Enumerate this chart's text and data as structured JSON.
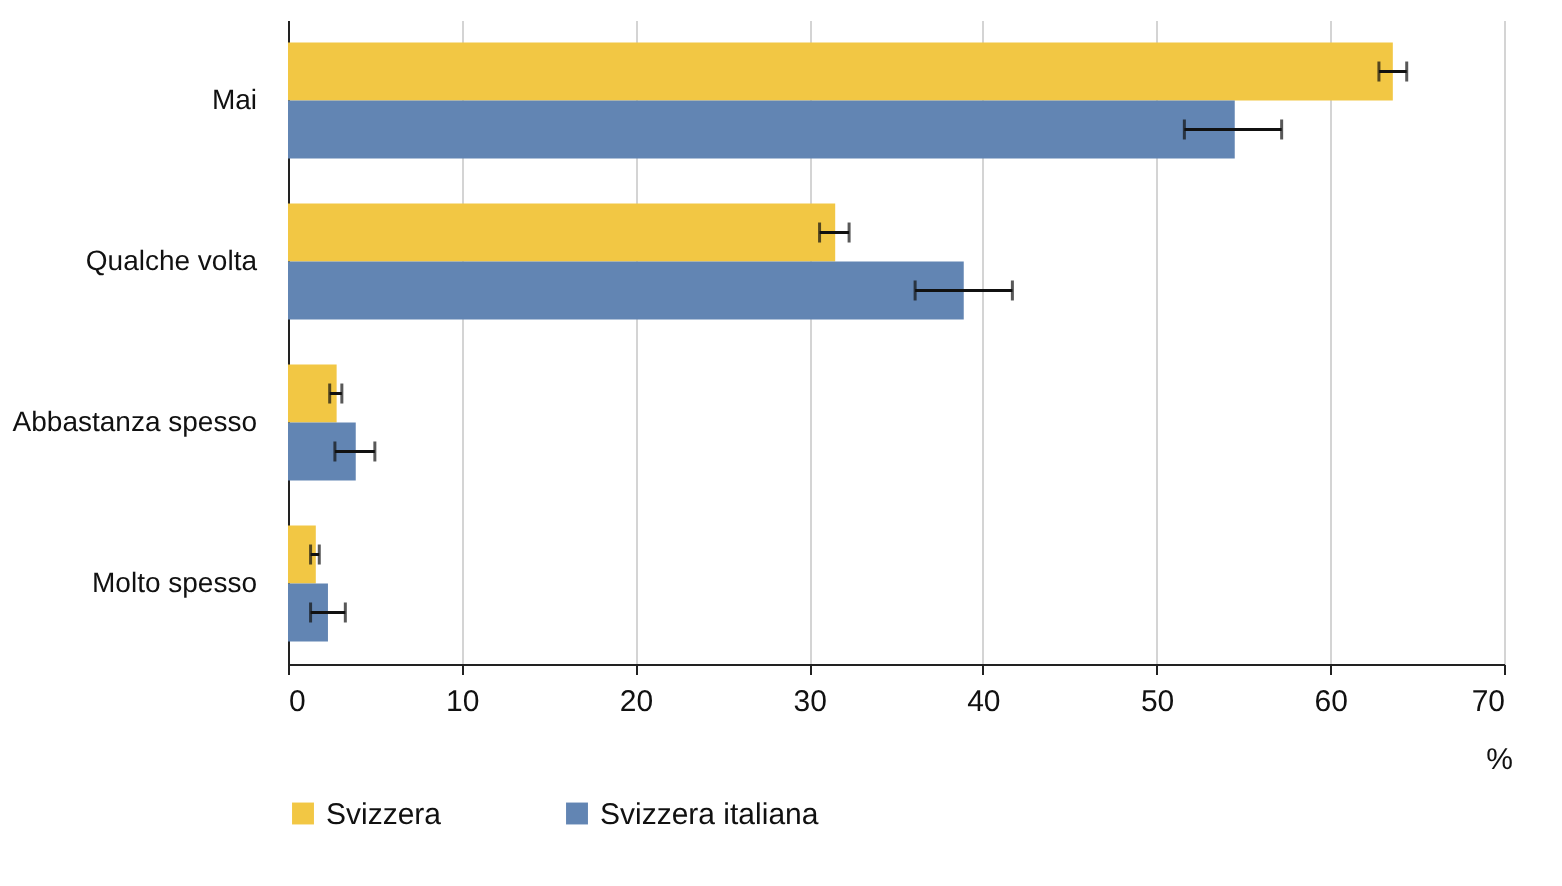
{
  "chart_data": {
    "type": "bar",
    "orientation": "horizontal",
    "xlabel": "%",
    "categories": [
      "Mai",
      "Qualche volta",
      "Abbastanza spesso",
      "Molto spesso"
    ],
    "series": [
      {
        "name": "Svizzera",
        "color": "#f2c744",
        "values": [
          63.6,
          31.5,
          2.8,
          1.6
        ],
        "errors": [
          [
            62.8,
            64.4
          ],
          [
            30.6,
            32.3
          ],
          [
            2.4,
            3.1
          ],
          [
            1.3,
            1.8
          ]
        ]
      },
      {
        "name": "Svizzera italiana",
        "color": "#6285b3",
        "values": [
          54.5,
          38.9,
          3.9,
          2.3
        ],
        "errors": [
          [
            51.6,
            57.2
          ],
          [
            36.1,
            41.7
          ],
          [
            2.7,
            5.0
          ],
          [
            1.3,
            3.3
          ]
        ]
      }
    ],
    "xlim": [
      0,
      70
    ],
    "xticks": [
      0,
      10,
      20,
      30,
      40,
      50,
      60,
      70
    ],
    "grid": "x",
    "legend": "bottom"
  }
}
